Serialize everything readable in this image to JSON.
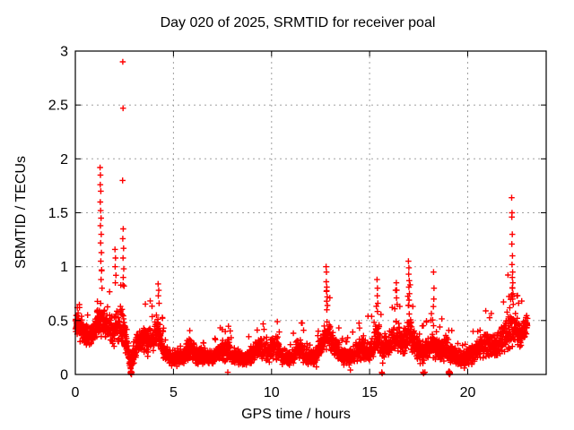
{
  "title": "Day 020 of 2025, SRMTID for receiver poal",
  "axes": {
    "x": {
      "label": "GPS time / hours",
      "min": 0,
      "max": 24,
      "ticks": [
        0,
        5,
        10,
        15,
        20
      ],
      "tick_labels": [
        "0",
        "5",
        "10",
        "15",
        "20"
      ]
    },
    "y": {
      "label": "SRMTID / TECUs",
      "min": 0,
      "max": 3,
      "ticks": [
        0,
        0.5,
        1,
        1.5,
        2,
        2.5,
        3
      ],
      "tick_labels": [
        "0",
        "0.5",
        "1",
        "1.5",
        "2",
        "2.5",
        "3"
      ]
    }
  },
  "colors": {
    "marker": "#ff0000",
    "grid": "#a0a0a0",
    "frame": "#000000",
    "background": "#ffffff",
    "text": "#000000"
  },
  "chart_data": {
    "type": "scatter",
    "marker": "plus",
    "title": "Day 020 of 2025, SRMTID for receiver poal",
    "xlabel": "GPS time / hours",
    "ylabel": "SRMTID / TECUs",
    "xlim": [
      0,
      24
    ],
    "ylim": [
      0,
      3
    ],
    "grid": "dashed-both-axes",
    "legend": "none",
    "series_name": "SRMTID",
    "data_start_hour": 0.0,
    "data_end_hour": 23.05,
    "points_per_hour": 130,
    "seed": 11,
    "band_profile_format": [
      "hour",
      "median_tecu",
      "spread_tecu"
    ],
    "band_profile": [
      [
        0.0,
        0.48,
        0.14
      ],
      [
        0.3,
        0.4,
        0.12
      ],
      [
        0.7,
        0.36,
        0.1
      ],
      [
        1.0,
        0.42,
        0.14
      ],
      [
        1.3,
        0.52,
        0.18
      ],
      [
        1.6,
        0.44,
        0.14
      ],
      [
        2.0,
        0.4,
        0.16
      ],
      [
        2.35,
        0.48,
        0.22
      ],
      [
        2.6,
        0.3,
        0.18
      ],
      [
        2.8,
        0.1,
        0.07
      ],
      [
        3.0,
        0.22,
        0.12
      ],
      [
        3.3,
        0.32,
        0.14
      ],
      [
        3.7,
        0.3,
        0.14
      ],
      [
        4.0,
        0.34,
        0.16
      ],
      [
        4.25,
        0.42,
        0.2
      ],
      [
        4.5,
        0.22,
        0.1
      ],
      [
        4.8,
        0.16,
        0.08
      ],
      [
        5.2,
        0.14,
        0.07
      ],
      [
        5.6,
        0.18,
        0.09
      ],
      [
        5.9,
        0.24,
        0.11
      ],
      [
        6.2,
        0.16,
        0.08
      ],
      [
        6.6,
        0.18,
        0.09
      ],
      [
        7.0,
        0.15,
        0.07
      ],
      [
        7.4,
        0.2,
        0.1
      ],
      [
        7.8,
        0.22,
        0.11
      ],
      [
        8.2,
        0.16,
        0.08
      ],
      [
        8.6,
        0.14,
        0.07
      ],
      [
        9.0,
        0.17,
        0.09
      ],
      [
        9.4,
        0.27,
        0.12
      ],
      [
        9.8,
        0.2,
        0.1
      ],
      [
        10.2,
        0.26,
        0.12
      ],
      [
        10.6,
        0.16,
        0.08
      ],
      [
        11.0,
        0.14,
        0.07
      ],
      [
        11.4,
        0.26,
        0.12
      ],
      [
        11.8,
        0.15,
        0.08
      ],
      [
        12.2,
        0.17,
        0.09
      ],
      [
        12.6,
        0.28,
        0.13
      ],
      [
        12.85,
        0.42,
        0.2
      ],
      [
        13.1,
        0.3,
        0.14
      ],
      [
        13.5,
        0.18,
        0.09
      ],
      [
        13.9,
        0.15,
        0.08
      ],
      [
        14.3,
        0.2,
        0.1
      ],
      [
        14.6,
        0.26,
        0.12
      ],
      [
        15.0,
        0.2,
        0.1
      ],
      [
        15.4,
        0.36,
        0.18
      ],
      [
        15.7,
        0.26,
        0.13
      ],
      [
        16.0,
        0.3,
        0.15
      ],
      [
        16.4,
        0.36,
        0.17
      ],
      [
        16.7,
        0.28,
        0.14
      ],
      [
        17.0,
        0.42,
        0.2
      ],
      [
        17.3,
        0.26,
        0.13
      ],
      [
        17.7,
        0.2,
        0.11
      ],
      [
        18.3,
        0.3,
        0.16
      ],
      [
        18.6,
        0.22,
        0.12
      ],
      [
        19.0,
        0.22,
        0.13
      ],
      [
        19.4,
        0.16,
        0.09
      ],
      [
        19.8,
        0.14,
        0.08
      ],
      [
        20.2,
        0.18,
        0.1
      ],
      [
        20.6,
        0.24,
        0.12
      ],
      [
        21.0,
        0.28,
        0.13
      ],
      [
        21.4,
        0.26,
        0.13
      ],
      [
        21.8,
        0.32,
        0.15
      ],
      [
        22.1,
        0.4,
        0.18
      ],
      [
        22.35,
        0.44,
        0.18
      ],
      [
        22.7,
        0.34,
        0.14
      ],
      [
        23.0,
        0.44,
        0.12
      ],
      [
        23.05,
        0.48,
        0.1
      ]
    ],
    "spike_points_format": [
      "hour",
      "tecu"
    ],
    "spike_points": [
      [
        0.1,
        0.62
      ],
      [
        0.14,
        0.57
      ],
      [
        0.08,
        0.55
      ],
      [
        1.26,
        1.92
      ],
      [
        1.28,
        1.85
      ],
      [
        1.27,
        1.76
      ],
      [
        1.3,
        1.7
      ],
      [
        1.27,
        1.6
      ],
      [
        1.29,
        1.52
      ],
      [
        1.31,
        1.45
      ],
      [
        1.28,
        1.38
      ],
      [
        1.32,
        1.3
      ],
      [
        1.29,
        1.22
      ],
      [
        1.33,
        1.13
      ],
      [
        1.3,
        1.05
      ],
      [
        1.34,
        0.97
      ],
      [
        1.31,
        0.88
      ],
      [
        1.36,
        0.8
      ],
      [
        2.02,
        1.16
      ],
      [
        2.05,
        1.08
      ],
      [
        2.03,
        1.0
      ],
      [
        2.07,
        0.92
      ],
      [
        2.04,
        0.85
      ],
      [
        2.42,
        2.9
      ],
      [
        2.43,
        2.47
      ],
      [
        2.41,
        1.8
      ],
      [
        2.44,
        1.35
      ],
      [
        2.42,
        1.26
      ],
      [
        2.46,
        1.17
      ],
      [
        2.43,
        1.08
      ],
      [
        2.47,
        0.98
      ],
      [
        2.44,
        0.9
      ],
      [
        2.48,
        0.82
      ],
      [
        4.22,
        0.84
      ],
      [
        4.25,
        0.78
      ],
      [
        4.23,
        0.73
      ],
      [
        4.27,
        0.66
      ],
      [
        12.78,
        1.0
      ],
      [
        12.8,
        0.95
      ],
      [
        12.79,
        0.86
      ],
      [
        12.82,
        0.81
      ],
      [
        12.8,
        0.77
      ],
      [
        12.84,
        0.72
      ],
      [
        12.81,
        0.68
      ],
      [
        12.85,
        0.64
      ],
      [
        12.82,
        0.6
      ],
      [
        15.38,
        0.88
      ],
      [
        15.4,
        0.8
      ],
      [
        15.39,
        0.73
      ],
      [
        15.42,
        0.66
      ],
      [
        16.36,
        0.85
      ],
      [
        16.38,
        0.78
      ],
      [
        16.37,
        0.71
      ],
      [
        16.4,
        0.65
      ],
      [
        16.98,
        1.05
      ],
      [
        17.0,
        0.99
      ],
      [
        16.99,
        0.93
      ],
      [
        17.02,
        0.87
      ],
      [
        17.0,
        0.81
      ],
      [
        17.03,
        0.75
      ],
      [
        17.01,
        0.69
      ],
      [
        18.26,
        0.95
      ],
      [
        18.28,
        0.8
      ],
      [
        18.27,
        0.7
      ],
      [
        18.25,
        0.63
      ],
      [
        22.24,
        1.64
      ],
      [
        22.26,
        1.5
      ],
      [
        22.25,
        1.46
      ],
      [
        22.27,
        1.3
      ],
      [
        22.25,
        1.21
      ],
      [
        22.28,
        1.1
      ],
      [
        22.26,
        1.02
      ],
      [
        22.29,
        0.95
      ],
      [
        22.27,
        0.9
      ],
      [
        22.3,
        0.85
      ],
      [
        22.28,
        0.8
      ],
      [
        22.31,
        0.75
      ],
      [
        22.29,
        0.7
      ],
      [
        22.32,
        0.65
      ]
    ],
    "low_points_format": [
      "hour",
      "tecu"
    ],
    "low_points": [
      [
        2.81,
        0.02
      ],
      [
        2.83,
        0.01
      ],
      [
        2.85,
        0.02
      ],
      [
        2.87,
        0.02
      ],
      [
        2.84,
        0.03
      ],
      [
        2.86,
        0.0
      ],
      [
        2.82,
        0.01
      ],
      [
        2.88,
        0.02
      ],
      [
        2.85,
        0.01
      ],
      [
        7.77,
        0.02
      ],
      [
        15.62,
        0.02
      ],
      [
        15.64,
        0.01
      ],
      [
        17.72,
        0.02
      ],
      [
        17.75,
        0.01
      ],
      [
        17.82,
        0.02
      ],
      [
        19.02,
        0.02
      ],
      [
        19.04,
        0.01
      ],
      [
        19.06,
        0.02
      ],
      [
        19.08,
        0.02
      ],
      [
        19.1,
        0.01
      ],
      [
        19.05,
        0.03
      ],
      [
        19.07,
        0.0
      ],
      [
        19.09,
        0.02
      ]
    ]
  }
}
